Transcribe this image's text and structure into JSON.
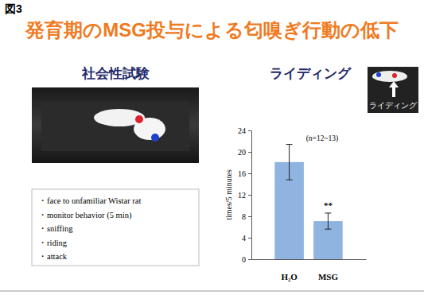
{
  "page": {
    "figure_label": "図3",
    "title": "発育期のMSG投与による匂嗅ぎ行動の低下",
    "left_heading": "社会性試験",
    "right_heading": "ライディング",
    "photo_label": "ライディング",
    "bullets": [
      "・face to unfamiliar Wistar rat",
      "・monitor behavior (5 min)",
      "・sniffing",
      "・riding",
      "・attack"
    ]
  },
  "chart_data": {
    "type": "bar",
    "y_label": "times/5 minutes",
    "categories": [
      "H₂O",
      "MSG"
    ],
    "values": [
      18.1,
      7.1
    ],
    "errors": [
      3.3,
      1.5
    ],
    "color": "#8fb4e0",
    "ylim": [
      0,
      24
    ],
    "yticks": [
      0,
      4,
      8,
      12,
      16,
      20,
      24
    ],
    "grid": false,
    "annotations": [
      "(n=12~13)"
    ],
    "significance": [
      null,
      "**"
    ]
  }
}
